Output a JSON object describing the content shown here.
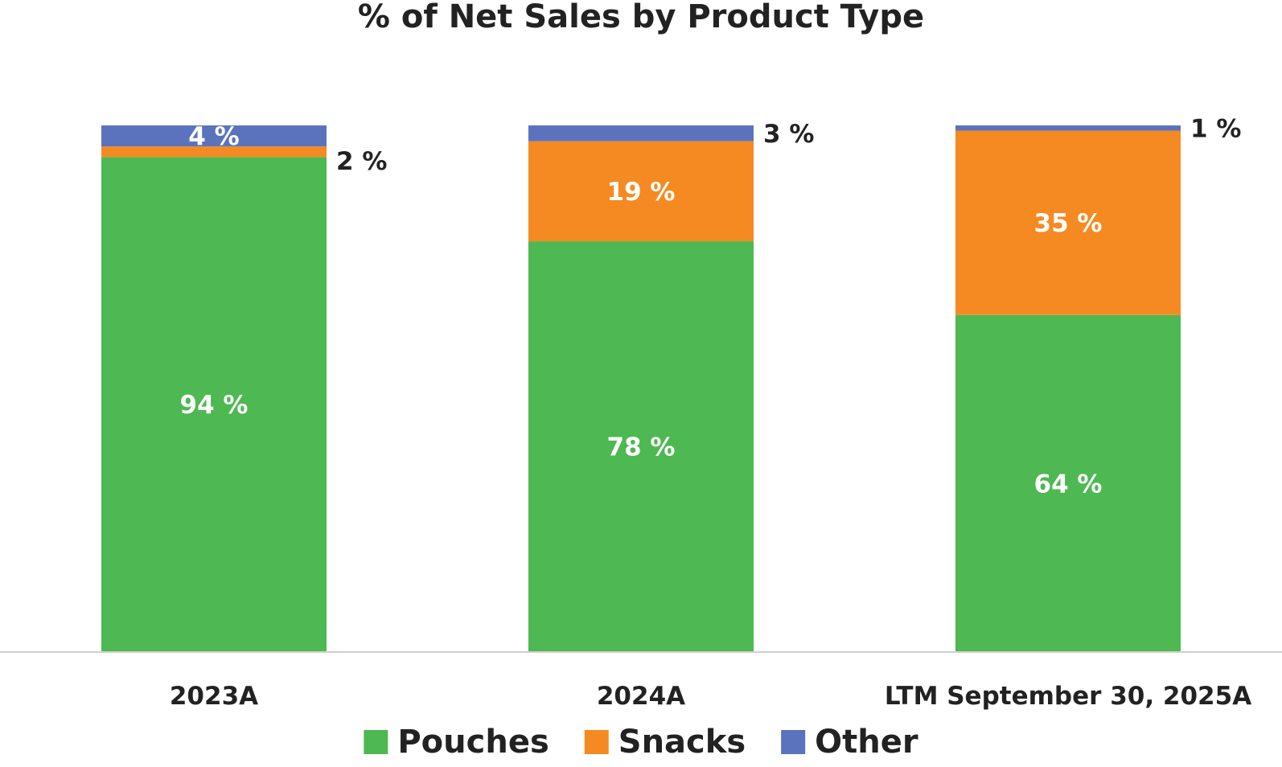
{
  "chart_data": {
    "type": "bar",
    "stacked": true,
    "title": "% of Net Sales by Product Type",
    "xlabel": "",
    "ylabel": "",
    "ylim": [
      0,
      100
    ],
    "grid": false,
    "legend_position": "bottom",
    "categories": [
      "2023A",
      "2024A",
      "LTM September 30, 2025A"
    ],
    "series": [
      {
        "name": "Pouches",
        "color": "#4eb852",
        "values": [
          94,
          78,
          64
        ],
        "labels": [
          "94 %",
          "78 %",
          "64 %"
        ]
      },
      {
        "name": "Snacks",
        "color": "#f58a22",
        "values": [
          2,
          19,
          35
        ],
        "labels": [
          "2 %",
          "19 %",
          "35 %"
        ]
      },
      {
        "name": "Other",
        "color": "#5b73bd",
        "values": [
          4,
          3,
          1
        ],
        "labels": [
          "4 %",
          "3 %",
          "1 %"
        ]
      }
    ]
  }
}
